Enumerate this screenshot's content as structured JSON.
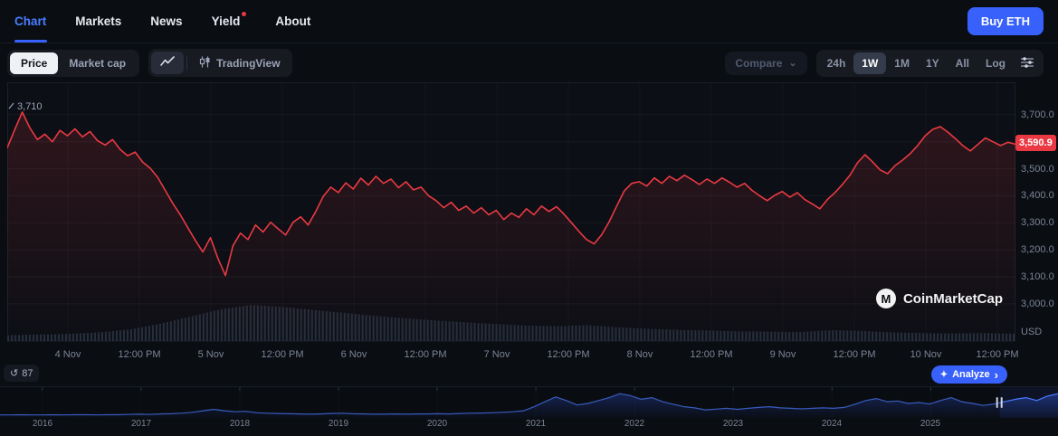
{
  "page": {
    "background": "#0a0d12",
    "accent_blue": "#3861fb",
    "accent_red": "#ea3943"
  },
  "nav": {
    "tabs": [
      {
        "label": "Chart",
        "active": true
      },
      {
        "label": "Markets",
        "active": false
      },
      {
        "label": "News",
        "active": false
      },
      {
        "label": "Yield",
        "active": false,
        "dot": true
      },
      {
        "label": "About",
        "active": false
      }
    ],
    "buy_button_label": "Buy ETH"
  },
  "toolbar": {
    "metric_tabs": [
      {
        "label": "Price",
        "active": true
      },
      {
        "label": "Market cap",
        "active": false
      }
    ],
    "tradingview_label": "TradingView",
    "compare_label": "Compare",
    "range_buttons": [
      {
        "label": "24h",
        "active": false
      },
      {
        "label": "1W",
        "active": true
      },
      {
        "label": "1M",
        "active": false
      },
      {
        "label": "1Y",
        "active": false
      },
      {
        "label": "All",
        "active": false
      },
      {
        "label": "Log",
        "active": false
      }
    ]
  },
  "overlay": {
    "high_label": "3,710",
    "price_badge": "3,590.9",
    "usd_label": "USD",
    "watermark_label": "CoinMarketCap",
    "watermark_logo_letter": "M",
    "history_count": "87",
    "analyze_label": "Analyze"
  },
  "chart_data": [
    {
      "name": "eth-price-1w",
      "type": "line",
      "title": "ETH/USD price, 1W view, 4 Nov - 10 Nov",
      "line_color": "#ea3943",
      "grid": true,
      "legend": "none",
      "ylim": [
        2983,
        3820
      ],
      "current_price": 3590.9,
      "period_high": 3710,
      "y_ticks": [
        {
          "value": 3700,
          "label": "3,700.0"
        },
        {
          "value": 3600,
          "label": "3,600.0"
        },
        {
          "value": 3500,
          "label": "3,500.0"
        },
        {
          "value": 3400,
          "label": "3,400.0"
        },
        {
          "value": 3300,
          "label": "3,300.0"
        },
        {
          "value": 3200,
          "label": "3,200.0"
        },
        {
          "value": 3100,
          "label": "3,100.0"
        },
        {
          "value": 3000,
          "label": "3,000.0"
        }
      ],
      "x_ticks": [
        "4 Nov",
        "12:00 PM",
        "5 Nov",
        "12:00 PM",
        "6 Nov",
        "12:00 PM",
        "7 Nov",
        "12:00 PM",
        "8 Nov",
        "12:00 PM",
        "9 Nov",
        "12:00 PM",
        "10 Nov",
        "12:00 PM"
      ],
      "values": [
        3578,
        3645,
        3710,
        3652,
        3608,
        3628,
        3600,
        3642,
        3622,
        3648,
        3618,
        3638,
        3604,
        3588,
        3608,
        3572,
        3548,
        3562,
        3525,
        3502,
        3468,
        3420,
        3372,
        3330,
        3282,
        3235,
        3192,
        3245,
        3168,
        3105,
        3215,
        3262,
        3238,
        3292,
        3266,
        3302,
        3278,
        3255,
        3302,
        3322,
        3292,
        3342,
        3398,
        3432,
        3412,
        3448,
        3425,
        3465,
        3440,
        3472,
        3446,
        3462,
        3430,
        3452,
        3422,
        3432,
        3400,
        3382,
        3356,
        3376,
        3346,
        3362,
        3336,
        3356,
        3330,
        3346,
        3312,
        3336,
        3320,
        3352,
        3330,
        3362,
        3342,
        3360,
        3332,
        3300,
        3268,
        3238,
        3222,
        3256,
        3304,
        3362,
        3418,
        3446,
        3452,
        3436,
        3466,
        3446,
        3472,
        3456,
        3476,
        3460,
        3442,
        3462,
        3446,
        3466,
        3450,
        3432,
        3446,
        3420,
        3400,
        3382,
        3402,
        3416,
        3395,
        3412,
        3386,
        3370,
        3352,
        3386,
        3412,
        3442,
        3476,
        3522,
        3552,
        3526,
        3496,
        3482,
        3512,
        3532,
        3556,
        3586,
        3622,
        3646,
        3656,
        3636,
        3612,
        3586,
        3566,
        3590,
        3614,
        3600,
        3586,
        3598,
        3590.9
      ],
      "volume_profile_normalized": [
        0.16,
        0.18,
        0.2,
        0.24,
        0.32,
        0.48,
        0.68,
        0.88,
        1.0,
        0.94,
        0.86,
        0.78,
        0.7,
        0.63,
        0.57,
        0.52,
        0.47,
        0.43,
        0.41,
        0.44,
        0.38,
        0.34,
        0.31,
        0.29,
        0.27,
        0.26,
        0.25,
        0.3,
        0.28,
        0.24,
        0.22,
        0.21,
        0.22,
        0.2
      ]
    },
    {
      "name": "history-navigator",
      "type": "area",
      "title": "ETH price history navigator 2016-2025",
      "line_color": "#4b7bff",
      "years": [
        "2016",
        "2017",
        "2018",
        "2019",
        "2020",
        "2021",
        "2022",
        "2023",
        "2024",
        "2025"
      ],
      "first_year_frac": 0.04,
      "year_step_frac": 0.0933,
      "selection_start_frac": 0.945,
      "values_normalized": [
        0.01,
        0.01,
        0.02,
        0.01,
        0.01,
        0.02,
        0.01,
        0.02,
        0.02,
        0.01,
        0.02,
        0.02,
        0.03,
        0.04,
        0.03,
        0.05,
        0.06,
        0.08,
        0.12,
        0.18,
        0.24,
        0.18,
        0.14,
        0.16,
        0.1,
        0.08,
        0.07,
        0.06,
        0.05,
        0.04,
        0.05,
        0.07,
        0.08,
        0.06,
        0.05,
        0.04,
        0.04,
        0.05,
        0.04,
        0.05,
        0.05,
        0.06,
        0.05,
        0.07,
        0.08,
        0.09,
        0.1,
        0.12,
        0.14,
        0.18,
        0.35,
        0.55,
        0.75,
        0.6,
        0.42,
        0.48,
        0.6,
        0.72,
        0.88,
        0.8,
        0.65,
        0.72,
        0.55,
        0.45,
        0.35,
        0.3,
        0.22,
        0.25,
        0.28,
        0.24,
        0.28,
        0.32,
        0.35,
        0.3,
        0.28,
        0.26,
        0.28,
        0.3,
        0.28,
        0.32,
        0.45,
        0.6,
        0.68,
        0.55,
        0.58,
        0.48,
        0.52,
        0.46,
        0.6,
        0.72,
        0.55,
        0.48,
        0.4,
        0.46,
        0.55,
        0.65,
        0.72,
        0.6,
        0.78,
        0.88
      ]
    }
  ]
}
